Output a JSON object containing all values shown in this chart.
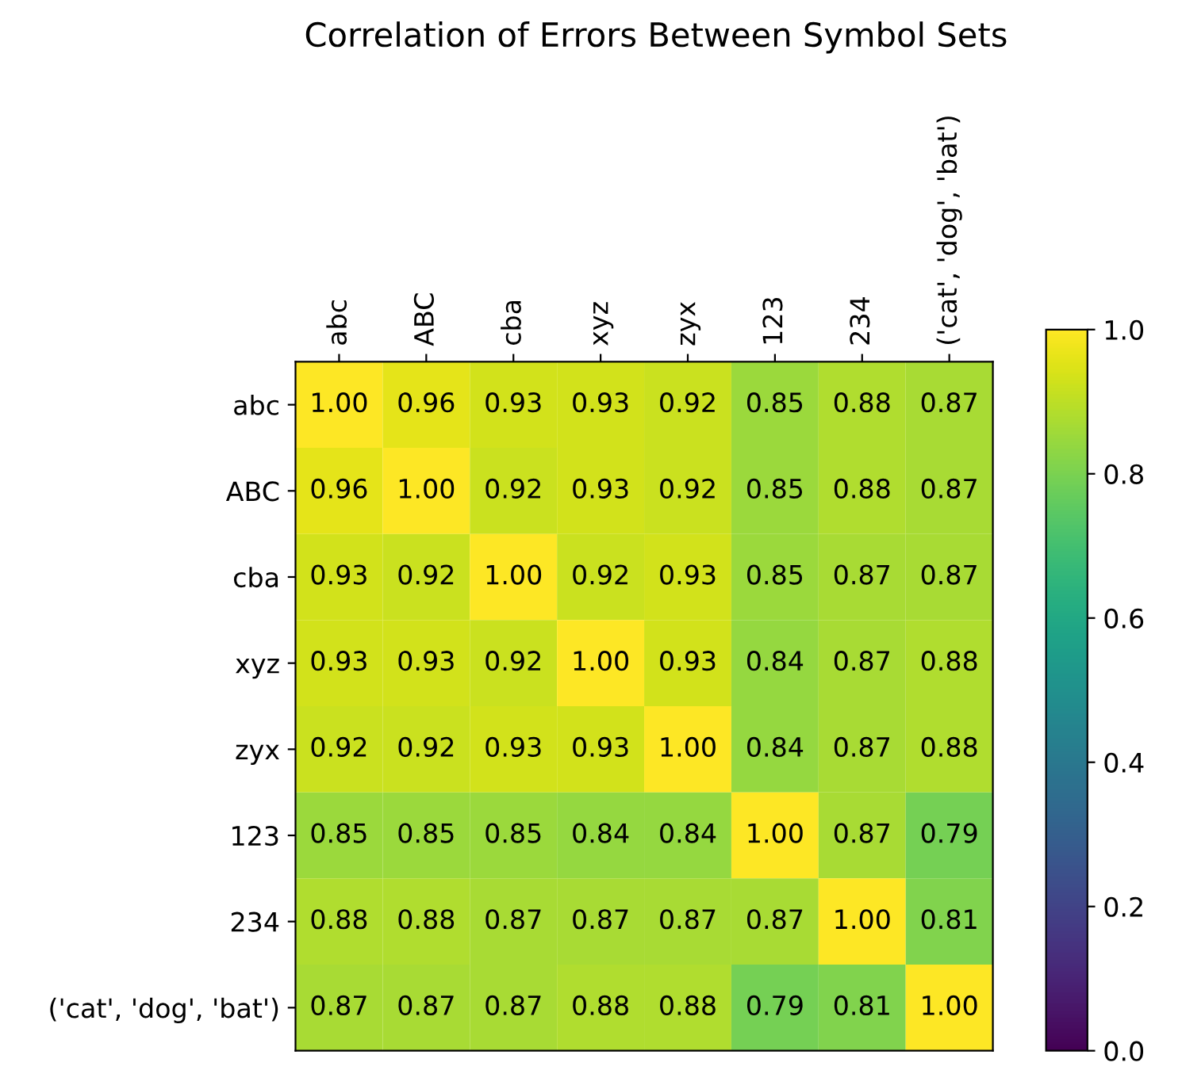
{
  "chart_data": {
    "type": "heatmap",
    "title": "Correlation of Errors Between Symbol Sets",
    "categories": [
      "abc",
      "ABC",
      "cba",
      "xyz",
      "zyx",
      "123",
      "234",
      "('cat', 'dog', 'bat')"
    ],
    "y_categories": [
      "abc",
      "ABC",
      "cba",
      "xyz",
      "zyx",
      "123",
      "234",
      "('cat', 'dog', 'bat')"
    ],
    "cells": [
      [
        1.0,
        0.96,
        0.93,
        0.93,
        0.92,
        0.85,
        0.88,
        0.87
      ],
      [
        0.96,
        1.0,
        0.92,
        0.93,
        0.92,
        0.85,
        0.88,
        0.87
      ],
      [
        0.93,
        0.92,
        1.0,
        0.92,
        0.93,
        0.85,
        0.87,
        0.87
      ],
      [
        0.93,
        0.93,
        0.92,
        1.0,
        0.93,
        0.84,
        0.87,
        0.88
      ],
      [
        0.92,
        0.92,
        0.93,
        0.93,
        1.0,
        0.84,
        0.87,
        0.88
      ],
      [
        0.85,
        0.85,
        0.85,
        0.84,
        0.84,
        1.0,
        0.87,
        0.79
      ],
      [
        0.88,
        0.88,
        0.87,
        0.87,
        0.87,
        0.87,
        1.0,
        0.81
      ],
      [
        0.87,
        0.87,
        0.87,
        0.88,
        0.88,
        0.79,
        0.81,
        1.0
      ]
    ],
    "cell_labels": [
      [
        "1.00",
        "0.96",
        "0.93",
        "0.93",
        "0.92",
        "0.85",
        "0.88",
        "0.87"
      ],
      [
        "0.96",
        "1.00",
        "0.92",
        "0.93",
        "0.92",
        "0.85",
        "0.88",
        "0.87"
      ],
      [
        "0.93",
        "0.92",
        "1.00",
        "0.92",
        "0.93",
        "0.85",
        "0.87",
        "0.87"
      ],
      [
        "0.93",
        "0.93",
        "0.92",
        "1.00",
        "0.93",
        "0.84",
        "0.87",
        "0.88"
      ],
      [
        "0.92",
        "0.92",
        "0.93",
        "0.93",
        "1.00",
        "0.84",
        "0.87",
        "0.88"
      ],
      [
        "0.85",
        "0.85",
        "0.85",
        "0.84",
        "0.84",
        "1.00",
        "0.87",
        "0.79"
      ],
      [
        "0.88",
        "0.88",
        "0.87",
        "0.87",
        "0.87",
        "0.87",
        "1.00",
        "0.81"
      ],
      [
        "0.87",
        "0.87",
        "0.87",
        "0.88",
        "0.88",
        "0.79",
        "0.81",
        "1.00"
      ]
    ],
    "clim": [
      0.0,
      1.0
    ],
    "cticks": [
      {
        "value": 0.0,
        "label": "0.0"
      },
      {
        "value": 0.2,
        "label": "0.2"
      },
      {
        "value": 0.4,
        "label": "0.4"
      },
      {
        "value": 0.6,
        "label": "0.6"
      },
      {
        "value": 0.8,
        "label": "0.8"
      },
      {
        "value": 1.0,
        "label": "1.0"
      }
    ]
  }
}
